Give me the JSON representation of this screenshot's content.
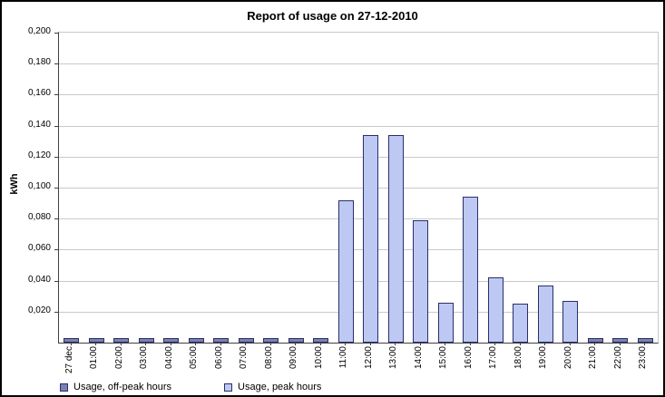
{
  "title": "Report of usage on 27-12-2010",
  "ylabel": "kWh",
  "legend": {
    "offpeak_label": "Usage, off-peak hours",
    "peak_label": "Usage, peak hours"
  },
  "colors": {
    "peak_fill": "#bdc9f2",
    "offpeak_fill": "#7b80ad",
    "bar_border": "#2b2e6b",
    "grid": "#c9c9c9",
    "axis": "#404040"
  },
  "y_axis": {
    "ticks": [
      {
        "value": 0.02,
        "label": "0,020"
      },
      {
        "value": 0.04,
        "label": "0,040"
      },
      {
        "value": 0.06,
        "label": "0,060"
      },
      {
        "value": 0.08,
        "label": "0,080"
      },
      {
        "value": 0.1,
        "label": "0,100"
      },
      {
        "value": 0.12,
        "label": "0,120"
      },
      {
        "value": 0.14,
        "label": "0,140"
      },
      {
        "value": 0.16,
        "label": "0,160"
      },
      {
        "value": 0.18,
        "label": "0,180"
      },
      {
        "value": 0.2,
        "label": "0,200"
      }
    ]
  },
  "chart_data": {
    "type": "bar",
    "title": "Report of usage on 27-12-2010",
    "xlabel": "",
    "ylabel": "kWh",
    "ylim": [
      0,
      0.2
    ],
    "grid": true,
    "legend_position": "bottom-left",
    "categories": [
      "27 dec",
      "01:00",
      "02:00",
      "03:00",
      "04:00",
      "05:00",
      "06:00",
      "07:00",
      "08:00",
      "09:00",
      "10:00",
      "11:00",
      "12:00",
      "13:00",
      "14:00",
      "15:00",
      "16:00",
      "17:00",
      "18:00",
      "19:00",
      "20:00",
      "21:00",
      "22:00",
      "23:00"
    ],
    "series": [
      {
        "name": "Usage, off-peak hours",
        "values": [
          0.003,
          0.003,
          0.003,
          0.003,
          0.003,
          0.003,
          0.003,
          0.003,
          0.003,
          0.003,
          0.003,
          null,
          null,
          null,
          null,
          null,
          null,
          null,
          null,
          null,
          null,
          0.003,
          0.003,
          0.003
        ]
      },
      {
        "name": "Usage, peak hours",
        "values": [
          null,
          null,
          null,
          null,
          null,
          null,
          null,
          null,
          null,
          null,
          null,
          0.092,
          0.134,
          0.134,
          0.079,
          0.026,
          0.094,
          0.042,
          0.025,
          0.037,
          0.027,
          null,
          null,
          null
        ]
      }
    ]
  }
}
